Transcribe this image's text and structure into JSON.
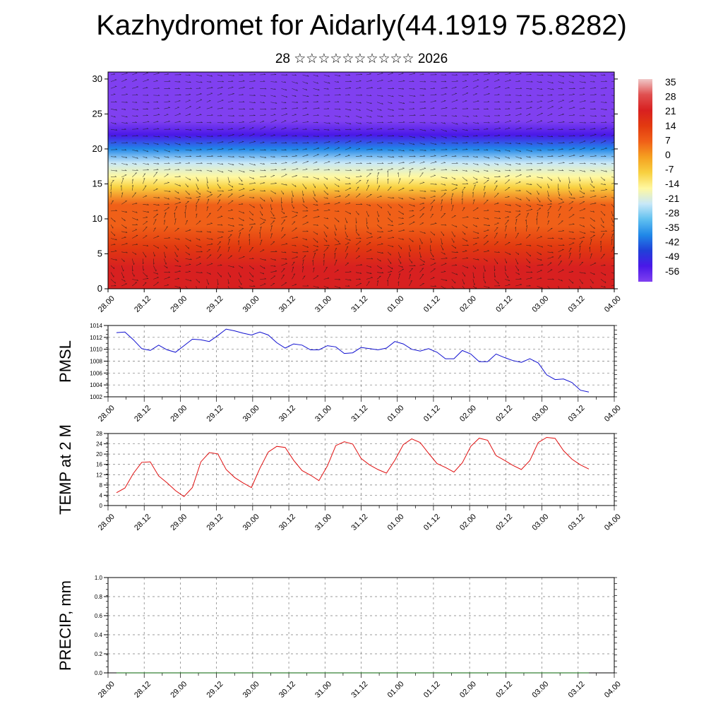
{
  "title": "Kazhydromet for Aidarly(44.1919 75.8282)",
  "subtitle": "28 ☆☆☆☆☆☆☆☆☆☆ 2026",
  "time_ticks": [
    "28.00",
    "28.12",
    "29.00",
    "29.12",
    "30.00",
    "30.12",
    "31.00",
    "31.12",
    "01.00",
    "01.12",
    "02.00",
    "02.12",
    "03.00",
    "03.12",
    "04.00"
  ],
  "chart_data": [
    {
      "type": "heatmap",
      "panel": "vertical-section",
      "x": [
        "28.00",
        "28.12",
        "29.00",
        "29.12",
        "30.00",
        "30.12",
        "31.00",
        "31.12",
        "01.00",
        "01.12",
        "02.00",
        "02.12",
        "03.00",
        "03.12",
        "04.00"
      ],
      "y_ticks": [
        0,
        5,
        10,
        15,
        20,
        25,
        30
      ],
      "ylim": [
        0,
        31
      ],
      "colorbar": {
        "labels": [
          "35",
          "28",
          "21",
          "14",
          "7",
          "0",
          "-7",
          "-14",
          "-21",
          "-28",
          "-35",
          "-42",
          "-49",
          "-56"
        ],
        "colors": [
          "#f0c8c8",
          "#e05050",
          "#d82020",
          "#e23a10",
          "#f06018",
          "#f5a020",
          "#f8d040",
          "#fff8a0",
          "#c8e8f8",
          "#60c0f0",
          "#2088e8",
          "#2040d8",
          "#4a18e8",
          "#8040f0"
        ]
      },
      "temperature_profile": [
        {
          "height": 0,
          "value": 21
        },
        {
          "height": 3,
          "value": 18
        },
        {
          "height": 6,
          "value": 13
        },
        {
          "height": 9,
          "value": 9
        },
        {
          "height": 12,
          "value": 4
        },
        {
          "height": 14.5,
          "value": -7
        },
        {
          "height": 16,
          "value": -14
        },
        {
          "height": 18,
          "value": -24
        },
        {
          "height": 20,
          "value": -36
        },
        {
          "height": 22,
          "value": -50
        },
        {
          "height": 24,
          "value": -54
        },
        {
          "height": 31,
          "value": -56
        }
      ],
      "overlay": "wind vectors"
    },
    {
      "type": "line",
      "ylabel": "PMSL",
      "ylim": [
        1002,
        1014
      ],
      "y_ticks": [
        1002,
        1004,
        1006,
        1008,
        1010,
        1012,
        1014
      ],
      "series": [
        {
          "color": "#1010d0",
          "values": [
            1012.8,
            1012.9,
            1011.6,
            1010.1,
            1009.8,
            1010.7,
            1009.9,
            1009.5,
            1010.6,
            1011.7,
            1011.6,
            1011.3,
            1012.3,
            1013.4,
            1013.1,
            1012.7,
            1012.4,
            1012.9,
            1012.4,
            1011.1,
            1010.2,
            1010.9,
            1010.7,
            1009.9,
            1009.9,
            1010.6,
            1010.4,
            1009.3,
            1009.4,
            1010.3,
            1010.1,
            1009.9,
            1010.2,
            1011.3,
            1010.9,
            1010.0,
            1009.7,
            1010.1,
            1009.5,
            1008.4,
            1008.4,
            1009.8,
            1009.2,
            1007.9,
            1007.9,
            1009.2,
            1008.6,
            1008.1,
            1007.8,
            1008.4,
            1007.7,
            1005.7,
            1004.9,
            1005.0,
            1004.4,
            1003.1,
            1002.8
          ]
        }
      ]
    },
    {
      "type": "line",
      "ylabel": "TEMP at 2 M",
      "ylim": [
        0,
        28
      ],
      "y_ticks": [
        0,
        4,
        8,
        12,
        16,
        20,
        24,
        28
      ],
      "series": [
        {
          "color": "#e01010",
          "values": [
            5.0,
            6.8,
            12.5,
            16.8,
            17.0,
            11.5,
            8.8,
            5.8,
            3.5,
            7.0,
            17.0,
            20.6,
            20.1,
            14.0,
            10.9,
            8.8,
            7.0,
            14.5,
            20.8,
            23.0,
            22.6,
            17.6,
            13.6,
            11.8,
            9.7,
            15.4,
            23.3,
            24.8,
            23.9,
            18.3,
            15.8,
            14.0,
            12.6,
            17.6,
            23.7,
            25.9,
            24.5,
            20.3,
            16.3,
            14.8,
            13.0,
            16.6,
            23.0,
            26.2,
            25.4,
            19.4,
            17.6,
            15.6,
            14.0,
            17.5,
            24.5,
            26.5,
            26.1,
            21.3,
            18.0,
            15.8,
            14.2
          ]
        }
      ]
    },
    {
      "type": "line",
      "ylabel": "PRECIP, mm",
      "ylim": [
        0.0,
        1.0
      ],
      "y_ticks": [
        "0.0",
        "0.2",
        "0.4",
        "0.6",
        "0.8",
        "1.0"
      ],
      "series": [
        {
          "color": "#006000",
          "values": [
            0,
            0,
            0,
            0,
            0,
            0,
            0,
            0,
            0,
            0,
            0,
            0,
            0,
            0,
            0,
            0,
            0,
            0,
            0,
            0,
            0,
            0,
            0,
            0,
            0,
            0,
            0,
            0,
            0,
            0,
            0,
            0,
            0,
            0,
            0,
            0,
            0,
            0,
            0,
            0,
            0,
            0,
            0,
            0,
            0,
            0,
            0,
            0,
            0,
            0,
            0,
            0,
            0,
            0,
            0,
            0,
            0
          ]
        }
      ]
    }
  ]
}
